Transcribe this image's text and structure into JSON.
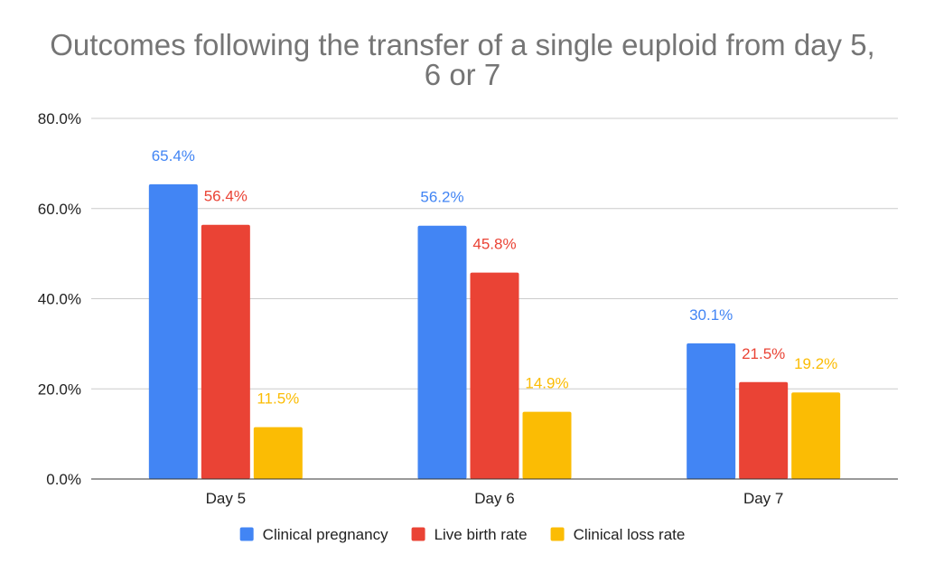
{
  "chart_data": {
    "type": "bar",
    "title_lines": [
      "Outcomes following the transfer of a single euploid from day 5,",
      "6 or 7"
    ],
    "categories": [
      "Day 5",
      "Day 6",
      "Day 7"
    ],
    "series": [
      {
        "name": "Clinical pregnancy",
        "color": "#4285f4",
        "values": [
          65.4,
          56.2,
          30.1
        ],
        "labels": [
          "65.4%",
          "56.2%",
          "30.1%"
        ]
      },
      {
        "name": "Live birth rate",
        "color": "#ea4335",
        "values": [
          56.4,
          45.8,
          21.5
        ],
        "labels": [
          "56.4%",
          "45.8%",
          "21.5%"
        ]
      },
      {
        "name": "Clinical loss rate",
        "color": "#fbbc04",
        "values": [
          11.5,
          14.9,
          19.2
        ],
        "labels": [
          "11.5%",
          "14.9%",
          "19.2%"
        ]
      }
    ],
    "y_ticks": [
      "0.0%",
      "20.0%",
      "40.0%",
      "60.0%",
      "80.0%"
    ],
    "ylim": [
      0,
      80
    ],
    "grid": true,
    "legend_position": "bottom"
  }
}
